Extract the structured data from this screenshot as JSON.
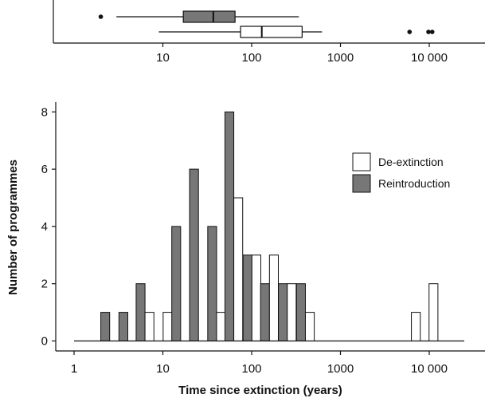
{
  "chart_data": [
    {
      "type": "boxplot",
      "xscale": "log",
      "xlim": [
        1,
        25000
      ],
      "xticks": [
        10,
        100,
        1000,
        10000
      ],
      "xtick_labels": [
        "10",
        "100",
        "1000",
        "10 000"
      ],
      "series": [
        {
          "name": "Reintroduction",
          "color": "#777777",
          "whisker_low": 3,
          "q1": 17,
          "median": 37,
          "q3": 65,
          "whisker_high": 340,
          "outliers": [
            2
          ]
        },
        {
          "name": "De-extinction",
          "color": "#ffffff",
          "whisker_low": 9,
          "q1": 75,
          "median": 130,
          "q3": 370,
          "whisker_high": 620,
          "outliers": [
            6000,
            9800,
            10800
          ]
        }
      ]
    },
    {
      "type": "bar",
      "xscale": "log",
      "xlim": [
        1,
        25000
      ],
      "ylim": [
        0,
        8.3
      ],
      "xticks": [
        1,
        10,
        100,
        1000,
        10000
      ],
      "xtick_labels": [
        "1",
        "10",
        "100",
        "1000",
        "10 000"
      ],
      "yticks": [
        0,
        2,
        4,
        6,
        8
      ],
      "ytick_labels": [
        "0",
        "2",
        "4",
        "6",
        "8"
      ],
      "xlabel": "Time since extinction (years)",
      "ylabel": "Number of programmes",
      "legend": "right",
      "bin_width_log10": 0.2,
      "bin_starts": [
        2,
        3.2,
        5,
        8,
        12.6,
        20,
        32,
        50,
        80,
        126,
        200,
        320,
        500,
        800,
        1260,
        2000,
        3200,
        5000,
        7900,
        12600
      ],
      "series": [
        {
          "name": "De-extinction",
          "color": "#ffffff",
          "values": [
            0,
            0,
            1,
            1,
            0,
            0,
            1,
            5,
            3,
            3,
            2,
            1,
            0,
            0,
            0,
            0,
            0,
            1,
            2,
            0
          ]
        },
        {
          "name": "Reintroduction",
          "color": "#777777",
          "values": [
            1,
            1,
            2,
            0,
            4,
            6,
            4,
            8,
            3,
            2,
            2,
            2,
            0,
            0,
            0,
            0,
            0,
            0,
            0,
            0
          ]
        }
      ]
    }
  ]
}
